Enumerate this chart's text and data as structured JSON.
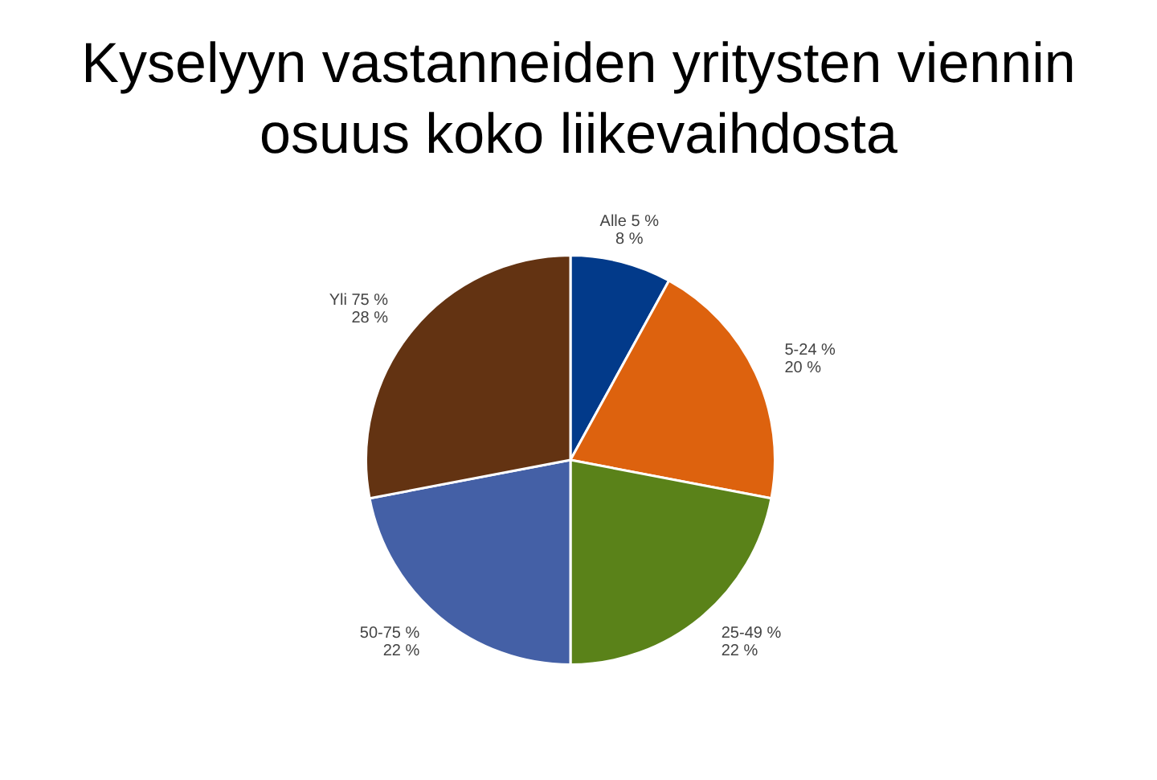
{
  "chart_data": {
    "type": "pie",
    "title": "Kyselyyn vastanneiden yritysten viennin osuus koko liikevaihdosta",
    "categories": [
      "Alle 5 %",
      "5-24 %",
      "25-49 %",
      "50-75 %",
      "Yli 75 %"
    ],
    "values": [
      8,
      20,
      22,
      22,
      28
    ],
    "value_labels": [
      "8 %",
      "20 %",
      "22 %",
      "22 %",
      "28 %"
    ],
    "colors": [
      "#023a8a",
      "#dd620e",
      "#5a8219",
      "#4460a6",
      "#633312"
    ],
    "legend": false
  }
}
